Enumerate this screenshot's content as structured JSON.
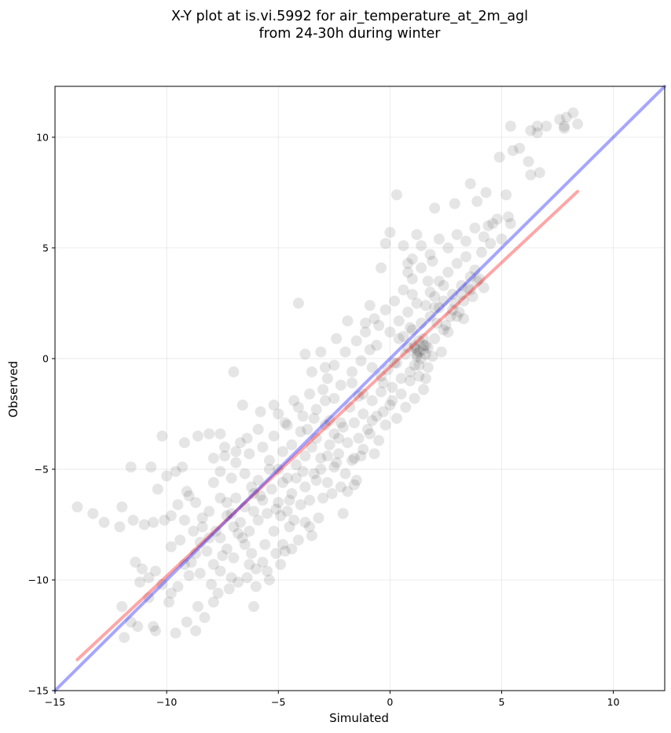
{
  "chart_data": {
    "type": "scatter",
    "title_line1": "X-Y plot at is.vi.5992 for air_temperature_at_2m_agl",
    "title_line2": "from 24-30h during winter",
    "xlabel": "Simulated",
    "ylabel": "Observed",
    "xlim": [
      -15,
      12.3
    ],
    "ylim": [
      -15,
      12.3
    ],
    "xticks": [
      -15,
      -10,
      -5,
      0,
      5,
      10
    ],
    "yticks": [
      -15,
      -10,
      -5,
      0,
      5,
      10
    ],
    "xtick_labels": [
      "−15",
      "−10",
      "−5",
      "0",
      "5",
      "10"
    ],
    "ytick_labels": [
      "−15",
      "−10",
      "−5",
      "0",
      "5",
      "10"
    ],
    "grid": true,
    "point_color": "#000000",
    "lines": [
      {
        "color": "#ff0000",
        "x": [
          -14,
          8.4
        ],
        "y": [
          -13.6,
          7.55
        ]
      },
      {
        "color": "#0000ff",
        "x": [
          -15,
          12.3
        ],
        "y": [
          -15,
          12.3
        ]
      }
    ],
    "points": [
      [
        -14,
        -6.7
      ],
      [
        -13.3,
        -7
      ],
      [
        -12.8,
        -7.4
      ],
      [
        -12,
        -6.7
      ],
      [
        -12.1,
        -7.6
      ],
      [
        -11.5,
        -7.3
      ],
      [
        -11,
        -7.5
      ],
      [
        -10.6,
        -7.4
      ],
      [
        -10.1,
        -7.3
      ],
      [
        -9.8,
        -7.1
      ],
      [
        -11.4,
        -9.2
      ],
      [
        -11.1,
        -9.5
      ],
      [
        -10.8,
        -9.9
      ],
      [
        -10.5,
        -9.6
      ],
      [
        -10.2,
        -10.2
      ],
      [
        -9.8,
        -10.6
      ],
      [
        -9.5,
        -10.3
      ],
      [
        -9.2,
        -9.3
      ],
      [
        -9,
        -9.8
      ],
      [
        -8.7,
        -8.8
      ],
      [
        -12,
        -11.2
      ],
      [
        -11.9,
        -12.6
      ],
      [
        -11.6,
        -11.9
      ],
      [
        -11.3,
        -12.1
      ],
      [
        -10.6,
        -12.1
      ],
      [
        -10.5,
        -12.3
      ],
      [
        -9.9,
        -11
      ],
      [
        -9.6,
        -12.4
      ],
      [
        -9.1,
        -11.9
      ],
      [
        -8.7,
        -12.3
      ],
      [
        -11.6,
        -4.9
      ],
      [
        -10.7,
        -4.9
      ],
      [
        -10.4,
        -5.9
      ],
      [
        -10,
        -5.3
      ],
      [
        -9.6,
        -5.1
      ],
      [
        -10.2,
        -3.5
      ],
      [
        -9.2,
        -3.8
      ],
      [
        -8.6,
        -3.5
      ],
      [
        -8.1,
        -3.4
      ],
      [
        -7.6,
        -3.4
      ],
      [
        -9.5,
        -6.6
      ],
      [
        -9.2,
        -7.3
      ],
      [
        -9,
        -6.2
      ],
      [
        -8.8,
        -7.8
      ],
      [
        -8.4,
        -7.6
      ],
      [
        -8.1,
        -6.9
      ],
      [
        -7.9,
        -5.6
      ],
      [
        -7.6,
        -6.3
      ],
      [
        -7.3,
        -7.1
      ],
      [
        -7,
        -7.6
      ],
      [
        -8.5,
        -8.3
      ],
      [
        -8.2,
        -8.7
      ],
      [
        -7.9,
        -9.3
      ],
      [
        -7.6,
        -8.1
      ],
      [
        -7.3,
        -8.6
      ],
      [
        -7,
        -9
      ],
      [
        -6.8,
        -7.9
      ],
      [
        -6.5,
        -8.4
      ],
      [
        -6.2,
        -8.8
      ],
      [
        -6,
        -9.5
      ],
      [
        -8.5,
        -9.7
      ],
      [
        -8,
        -10.2
      ],
      [
        -7.6,
        -9.6
      ],
      [
        -7.2,
        -10.4
      ],
      [
        -6.8,
        -10.1
      ],
      [
        -6.4,
        -9.9
      ],
      [
        -8.3,
        -11.7
      ],
      [
        -8.6,
        -11.2
      ],
      [
        -5.7,
        -9.2
      ],
      [
        -5.4,
        -10
      ],
      [
        -7.9,
        -4.5
      ],
      [
        -7.6,
        -5.1
      ],
      [
        -7.4,
        -4
      ],
      [
        -7.1,
        -5.4
      ],
      [
        -6.9,
        -4.7
      ],
      [
        -6.7,
        -3.8
      ],
      [
        -6.5,
        -5.2
      ],
      [
        -6.3,
        -4.3
      ],
      [
        -6.1,
        -6.1
      ],
      [
        -5.9,
        -5.5
      ],
      [
        -7.3,
        -6.5
      ],
      [
        -7.1,
        -7
      ],
      [
        -6.9,
        -6.3
      ],
      [
        -6.7,
        -7.4
      ],
      [
        -6.5,
        -6.7
      ],
      [
        -6.3,
        -7.8
      ],
      [
        -6.1,
        -6.9
      ],
      [
        -5.9,
        -7.3
      ],
      [
        -5.7,
        -6.4
      ],
      [
        -5.5,
        -7
      ],
      [
        -5.7,
        -4
      ],
      [
        -5.4,
        -4.6
      ],
      [
        -5.2,
        -3.5
      ],
      [
        -5,
        -5
      ],
      [
        -4.8,
        -4.2
      ],
      [
        -4.6,
        -5.4
      ],
      [
        -4.4,
        -3.9
      ],
      [
        -4.2,
        -4.8
      ],
      [
        -4,
        -3.3
      ],
      [
        -3.8,
        -4.4
      ],
      [
        -5.8,
        -2.4
      ],
      [
        -5.2,
        -2.1
      ],
      [
        -4.7,
        -2.9
      ],
      [
        -4.3,
        -1.9
      ],
      [
        -3.9,
        -2.6
      ],
      [
        -3.6,
        -1.6
      ],
      [
        -3.3,
        -2.3
      ],
      [
        -3,
        -1.4
      ],
      [
        -2.7,
        -2.8
      ],
      [
        -2.5,
        -1.8
      ],
      [
        -5.3,
        -5.9
      ],
      [
        -5,
        -6.5
      ],
      [
        -4.8,
        -5.6
      ],
      [
        -4.6,
        -6.9
      ],
      [
        -4.4,
        -6.1
      ],
      [
        -4.2,
        -5.4
      ],
      [
        -4,
        -6.6
      ],
      [
        -3.8,
        -5.8
      ],
      [
        -3.6,
        -6.4
      ],
      [
        -3.4,
        -5.2
      ],
      [
        -5.2,
        -7.8
      ],
      [
        -4.8,
        -8.4
      ],
      [
        -4.5,
        -7.6
      ],
      [
        -4.1,
        -8.2
      ],
      [
        -3.8,
        -7.4
      ],
      [
        -3.5,
        -8
      ],
      [
        -4.4,
        -8.6
      ],
      [
        -5.6,
        -8.4
      ],
      [
        -3.2,
        -7.2
      ],
      [
        -3,
        -6.3
      ],
      [
        -3.7,
        -3.2
      ],
      [
        -3.5,
        -4
      ],
      [
        -3.3,
        -3.6
      ],
      [
        -3.1,
        -4.5
      ],
      [
        -2.9,
        -3
      ],
      [
        -2.7,
        -3.9
      ],
      [
        -2.5,
        -3.4
      ],
      [
        -2.3,
        -4.3
      ],
      [
        -2.1,
        -3.1
      ],
      [
        -1.9,
        -3.8
      ],
      [
        -3.1,
        -5
      ],
      [
        -2.8,
        -5.6
      ],
      [
        -2.5,
        -4.9
      ],
      [
        -2.2,
        -5.8
      ],
      [
        -2,
        -5.2
      ],
      [
        -1.7,
        -4.6
      ],
      [
        -1.5,
        -5.5
      ],
      [
        -2.6,
        -6.1
      ],
      [
        -1.9,
        -6
      ],
      [
        -1.3,
        -4.4
      ],
      [
        -2.8,
        -0.9
      ],
      [
        -2.5,
        -0.3
      ],
      [
        -2.2,
        -1.2
      ],
      [
        -2,
        0.3
      ],
      [
        -1.7,
        -0.6
      ],
      [
        -1.5,
        0.8
      ],
      [
        -1.3,
        -0.1
      ],
      [
        -1.1,
        1.2
      ],
      [
        -0.9,
        0.4
      ],
      [
        -0.7,
        1.8
      ],
      [
        -1.8,
        -2.2
      ],
      [
        -1.6,
        -2.9
      ],
      [
        -1.4,
        -1.7
      ],
      [
        -1.2,
        -2.5
      ],
      [
        -1,
        -3.2
      ],
      [
        -0.8,
        -1.9
      ],
      [
        -0.6,
        -2.6
      ],
      [
        -0.4,
        -1.5
      ],
      [
        -0.2,
        -3
      ],
      [
        0,
        -2.1
      ],
      [
        -1.4,
        -3.6
      ],
      [
        -1.2,
        -4.1
      ],
      [
        -0.9,
        -3.4
      ],
      [
        -0.7,
        -4.3
      ],
      [
        -0.5,
        -3.7
      ],
      [
        -0.3,
        -2.4
      ],
      [
        -1.6,
        -4.5
      ],
      [
        -2.4,
        -4.7
      ],
      [
        -0.8,
        -0.4
      ],
      [
        -0.6,
        0.6
      ],
      [
        -0.3,
        -1.1
      ],
      [
        -0.1,
        -0.5
      ],
      [
        0.1,
        -1.3
      ],
      [
        0.3,
        -0.2
      ],
      [
        0.5,
        -0.9
      ],
      [
        0.7,
        0.2
      ],
      [
        0.9,
        -0.6
      ],
      [
        1.1,
        0.5
      ],
      [
        1.3,
        -0.3
      ],
      [
        1.5,
        0.9
      ],
      [
        -0.5,
        1.5
      ],
      [
        -0.2,
        2.2
      ],
      [
        0,
        1.2
      ],
      [
        0.2,
        2.6
      ],
      [
        0.4,
        1.7
      ],
      [
        0.6,
        3.1
      ],
      [
        0.8,
        2.1
      ],
      [
        1,
        3.6
      ],
      [
        1.2,
        2.5
      ],
      [
        1.4,
        4.1
      ],
      [
        0.6,
        1
      ],
      [
        0.8,
        0.5
      ],
      [
        1,
        1.3
      ],
      [
        1.2,
        0.2
      ],
      [
        1.4,
        1.6
      ],
      [
        1.6,
        0.6
      ],
      [
        1.8,
        1.9
      ],
      [
        2,
        0.9
      ],
      [
        2.2,
        2.3
      ],
      [
        2.4,
        1.3
      ],
      [
        0.5,
        -1.6
      ],
      [
        0.7,
        -2.2
      ],
      [
        0.9,
        -1
      ],
      [
        1.1,
        -1.8
      ],
      [
        1.3,
        -0.8
      ],
      [
        1.5,
        -1.4
      ],
      [
        1.7,
        -0.4
      ],
      [
        0.3,
        -2.7
      ],
      [
        0.1,
        -1.9
      ],
      [
        1.9,
        0.1
      ],
      [
        1.2,
        0.1
      ],
      [
        1.3,
        0.3
      ],
      [
        1.4,
        0
      ],
      [
        1.5,
        0.4
      ],
      [
        1.6,
        0.2
      ],
      [
        1.1,
        0.6
      ],
      [
        1.3,
        0.8
      ],
      [
        1.5,
        0.6
      ],
      [
        1.7,
        0.5
      ],
      [
        1.2,
        0.4
      ],
      [
        1.8,
        3
      ],
      [
        2,
        2.3
      ],
      [
        2.2,
        3.5
      ],
      [
        2.4,
        2.6
      ],
      [
        2.6,
        3.9
      ],
      [
        2.8,
        2.9
      ],
      [
        3,
        4.3
      ],
      [
        3.2,
        3.3
      ],
      [
        3.4,
        4.6
      ],
      [
        3.6,
        3.7
      ],
      [
        1,
        4.5
      ],
      [
        1.4,
        5.1
      ],
      [
        1.8,
        4.7
      ],
      [
        2.2,
        5.4
      ],
      [
        2.6,
        5
      ],
      [
        3,
        5.6
      ],
      [
        3.4,
        5.3
      ],
      [
        3.8,
        5.9
      ],
      [
        4.2,
        5.5
      ],
      [
        4.6,
        6.1
      ],
      [
        2.5,
        1.5
      ],
      [
        2.8,
        2.2
      ],
      [
        3,
        1.9
      ],
      [
        3.3,
        2.6
      ],
      [
        3.6,
        3.1
      ],
      [
        3.9,
        3.5
      ],
      [
        4.2,
        3.2
      ],
      [
        3.7,
        2.8
      ],
      [
        2.6,
        1.2
      ],
      [
        3.2,
        2.9
      ],
      [
        0,
        5.7
      ],
      [
        0.3,
        7.4
      ],
      [
        -0.2,
        5.2
      ],
      [
        0.8,
        4.3
      ],
      [
        1.2,
        5.6
      ],
      [
        2,
        6.8
      ],
      [
        2.9,
        7
      ],
      [
        3.6,
        7.9
      ],
      [
        4.3,
        7.5
      ],
      [
        5.2,
        7.4
      ],
      [
        4.8,
        6.3
      ],
      [
        5,
        5.4
      ],
      [
        5.4,
        6.1
      ],
      [
        4.4,
        6
      ],
      [
        3.9,
        7.1
      ],
      [
        4.1,
        4.8
      ],
      [
        4.5,
        5.2
      ],
      [
        3.8,
        4
      ],
      [
        4,
        3.6
      ],
      [
        3.5,
        3.2
      ],
      [
        5.4,
        10.5
      ],
      [
        5.5,
        9.4
      ],
      [
        5.8,
        9.5
      ],
      [
        6.3,
        10.3
      ],
      [
        6.6,
        10.5
      ],
      [
        7,
        10.5
      ],
      [
        7.6,
        10.8
      ],
      [
        7.8,
        10.5
      ],
      [
        7.9,
        10.9
      ],
      [
        8.2,
        11.1
      ],
      [
        8.4,
        10.6
      ],
      [
        6.2,
        8.9
      ],
      [
        6.3,
        8.3
      ],
      [
        6.7,
        8.4
      ],
      [
        4.9,
        9.1
      ],
      [
        7.8,
        10.4
      ],
      [
        6.6,
        10.2
      ],
      [
        5.3,
        6.4
      ],
      [
        -4.1,
        2.5
      ],
      [
        -7,
        -0.6
      ],
      [
        -6.6,
        -2.1
      ],
      [
        -3.8,
        0.2
      ],
      [
        -3.1,
        0.3
      ],
      [
        -2.9,
        -0.4
      ],
      [
        -3.5,
        -0.6
      ],
      [
        -2.4,
        0.9
      ],
      [
        -1.9,
        1.7
      ],
      [
        -1.1,
        1.6
      ],
      [
        -0.9,
        2.4
      ],
      [
        -0.4,
        4.1
      ],
      [
        0.6,
        5.1
      ],
      [
        0.8,
        3.9
      ],
      [
        1.9,
        4.4
      ],
      [
        -2.1,
        -7
      ],
      [
        -1.6,
        -5.7
      ],
      [
        -3.6,
        -7.6
      ],
      [
        -4.7,
        -8.7
      ],
      [
        -4.3,
        -7.3
      ],
      [
        -5.5,
        -9.6
      ],
      [
        -6.1,
        -11.2
      ],
      [
        -8.7,
        -6.5
      ],
      [
        -9.1,
        -6
      ],
      [
        -9.4,
        -8.2
      ],
      [
        -9.8,
        -8.5
      ],
      [
        -8.9,
        -9.2
      ],
      [
        -7.7,
        -10.6
      ],
      [
        -7.9,
        -11
      ],
      [
        -10.8,
        -10.8
      ],
      [
        -11.2,
        -10.1
      ],
      [
        -9.3,
        -4.9
      ],
      [
        -7.4,
        -4.4
      ],
      [
        -6.9,
        -4.2
      ],
      [
        -6.4,
        -3.6
      ],
      [
        -5.9,
        -3.2
      ],
      [
        -5,
        -2.5
      ],
      [
        -4.6,
        -3
      ],
      [
        -4.1,
        -2.2
      ],
      [
        -3.4,
        -2.7
      ],
      [
        -2.9,
        -1.9
      ],
      [
        -2.2,
        -2.9
      ],
      [
        -1.7,
        -1.1
      ],
      [
        -1.2,
        -1.6
      ],
      [
        -0.8,
        -2.8
      ],
      [
        -0.4,
        -0.8
      ],
      [
        0.2,
        -0.2
      ],
      [
        0.4,
        0.9
      ],
      [
        0.9,
        1.4
      ],
      [
        1.1,
        -0.3
      ],
      [
        1.6,
        -0.9
      ],
      [
        2.1,
        1.6
      ],
      [
        2.3,
        0.3
      ],
      [
        2.7,
        1.9
      ],
      [
        3.1,
        2.1
      ],
      [
        3.3,
        1.8
      ],
      [
        2.9,
        2.5
      ],
      [
        2.4,
        3.3
      ],
      [
        2,
        2.8
      ],
      [
        1.7,
        3.5
      ],
      [
        1.6,
        2.4
      ],
      [
        1,
        2.9
      ],
      [
        -6.2,
        -5.8
      ],
      [
        -5.8,
        -6.2
      ],
      [
        -5.4,
        -5
      ],
      [
        -5.1,
        -6.8
      ],
      [
        -4.9,
        -7.1
      ],
      [
        -4.5,
        -6.4
      ],
      [
        -3.9,
        -5.1
      ],
      [
        -3.3,
        -5.5
      ],
      [
        -2.8,
        -4.4
      ],
      [
        -2.3,
        -3.6
      ],
      [
        -7.8,
        -7.8
      ],
      [
        -8.1,
        -8.1
      ],
      [
        -8.4,
        -7.2
      ],
      [
        -7.5,
        -8.9
      ],
      [
        -6.6,
        -8.1
      ],
      [
        -6.3,
        -9.3
      ],
      [
        -7.1,
        -9.9
      ],
      [
        -6,
        -10.3
      ],
      [
        -5.1,
        -8.8
      ],
      [
        -4.9,
        -9.3
      ]
    ]
  }
}
